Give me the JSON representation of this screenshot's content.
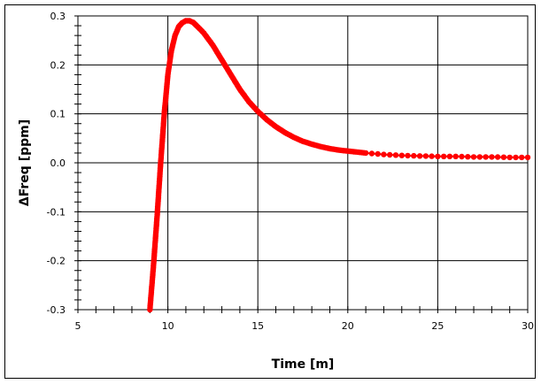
{
  "chart_data": {
    "type": "scatter",
    "title": "",
    "xlabel": "Time [m]",
    "ylabel": "ΔFreq [ppm]",
    "xlim": [
      5,
      30
    ],
    "ylim": [
      -0.3,
      0.3
    ],
    "x_ticks": [
      "5",
      "10",
      "15",
      "20",
      "25",
      "30"
    ],
    "y_ticks": [
      "0.3",
      "0.2",
      "0.1",
      "0.0",
      "-0.1",
      "-0.2",
      "-0.3"
    ],
    "grid": true,
    "legend": null,
    "series": [
      {
        "name": "ΔFreq",
        "color": "#ff0000",
        "marker": "circle",
        "x": [
          9.0,
          9.2,
          9.4,
          9.6,
          9.8,
          10.0,
          10.2,
          10.4,
          10.6,
          10.8,
          11.0,
          11.2,
          11.4,
          11.6,
          12.0,
          12.5,
          13.0,
          13.5,
          14.0,
          14.5,
          15.0,
          15.5,
          16.0,
          16.5,
          17.0,
          17.5,
          18.0,
          18.5,
          19.0,
          19.5,
          20.0,
          21.0,
          22.0,
          23.0,
          24.0,
          25.0,
          26.0,
          27.0,
          28.0,
          29.0,
          30.0
        ],
        "values": [
          -0.3,
          -0.21,
          -0.11,
          0.0,
          0.1,
          0.18,
          0.23,
          0.26,
          0.278,
          0.286,
          0.29,
          0.29,
          0.287,
          0.28,
          0.265,
          0.24,
          0.21,
          0.18,
          0.15,
          0.125,
          0.105,
          0.088,
          0.074,
          0.062,
          0.052,
          0.044,
          0.038,
          0.033,
          0.029,
          0.026,
          0.024,
          0.02,
          0.017,
          0.015,
          0.014,
          0.013,
          0.013,
          0.012,
          0.012,
          0.011,
          0.011
        ]
      }
    ]
  },
  "axes": {
    "x_title": "Time [m]",
    "y_title": "ΔFreq [ppm]"
  }
}
